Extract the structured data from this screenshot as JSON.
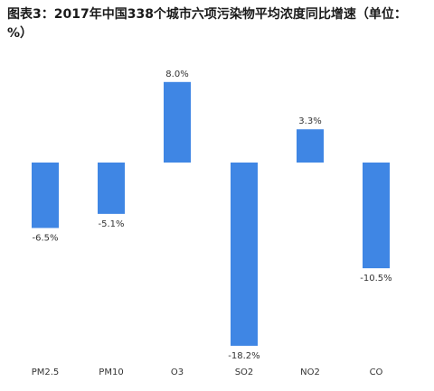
{
  "chart_data": {
    "type": "bar",
    "title": "图表3：2017年中国338个城市六项污染物平均浓度同比增速（单位：%）",
    "categories": [
      "PM2.5",
      "PM10",
      "O3",
      "SO2",
      "NO2",
      "CO"
    ],
    "series": [
      {
        "values": [
          -6.5,
          -5.1,
          8.0,
          -18.2,
          3.3,
          -10.5
        ],
        "labels": [
          "-6.5%",
          "-5.1%",
          "8.0%",
          "-18.2%",
          "3.3%",
          "-10.5%"
        ]
      }
    ],
    "xlabel": "",
    "ylabel": "",
    "ylim": [
      -18.2,
      8.0
    ],
    "grid": false,
    "legend": "none",
    "bar_color": "#3f86e4"
  }
}
